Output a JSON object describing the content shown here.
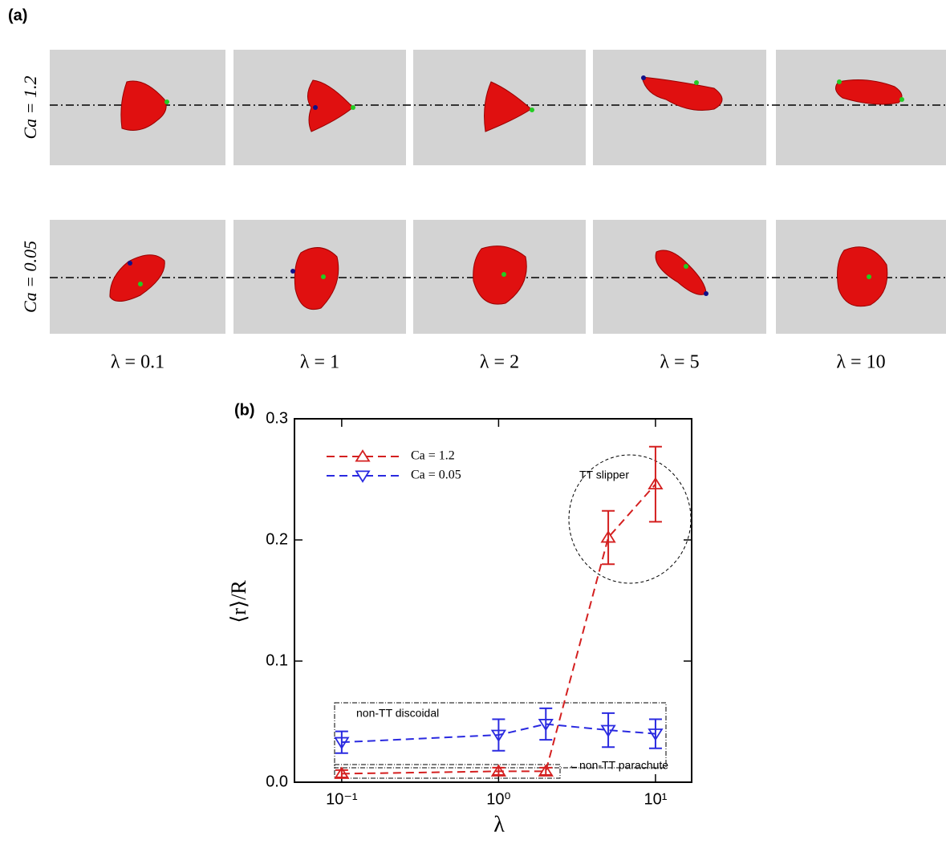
{
  "panel_a": {
    "label": "(a)",
    "row_labels": [
      "Ca = 1.2",
      "Ca = 0.05"
    ],
    "column_labels": [
      "λ = 0.1",
      "λ = 1",
      "λ = 2",
      "λ = 5",
      "λ = 10"
    ]
  },
  "chart_data": {
    "type": "line",
    "panel_label": "(b)",
    "x_label": "λ",
    "y_label": "⟨r⟩/R",
    "xscale": "log",
    "xlim": [
      0.05,
      17
    ],
    "xticks": [
      {
        "value": 0.1,
        "label": "10⁻¹"
      },
      {
        "value": 1,
        "label": "10⁰"
      },
      {
        "value": 10,
        "label": "10¹"
      }
    ],
    "ylim": [
      0,
      0.3
    ],
    "yticks": [
      {
        "value": 0,
        "label": "0.0"
      },
      0.1,
      0.2,
      0.3
    ],
    "legend": "upper left",
    "series": [
      {
        "name": "Ca = 1.2",
        "color": "#d42020",
        "marker": "triangle-up",
        "linestyle": "dashed",
        "x": [
          0.1,
          1,
          2,
          5,
          10
        ],
        "values": [
          0.007,
          0.009,
          0.009,
          0.202,
          0.246
        ],
        "errors": [
          0.003,
          0.003,
          0.003,
          0.022,
          0.031
        ]
      },
      {
        "name": "Ca = 0.05",
        "color": "#2a2ae0",
        "marker": "triangle-down",
        "linestyle": "dashed",
        "x": [
          0.1,
          1,
          2,
          5,
          10
        ],
        "values": [
          0.033,
          0.039,
          0.048,
          0.043,
          0.04
        ],
        "errors": [
          0.009,
          0.013,
          0.013,
          0.014,
          0.012
        ]
      }
    ],
    "annotations": [
      "TT slipper",
      "non-TT discoidal",
      "←non-TT parachute"
    ]
  }
}
